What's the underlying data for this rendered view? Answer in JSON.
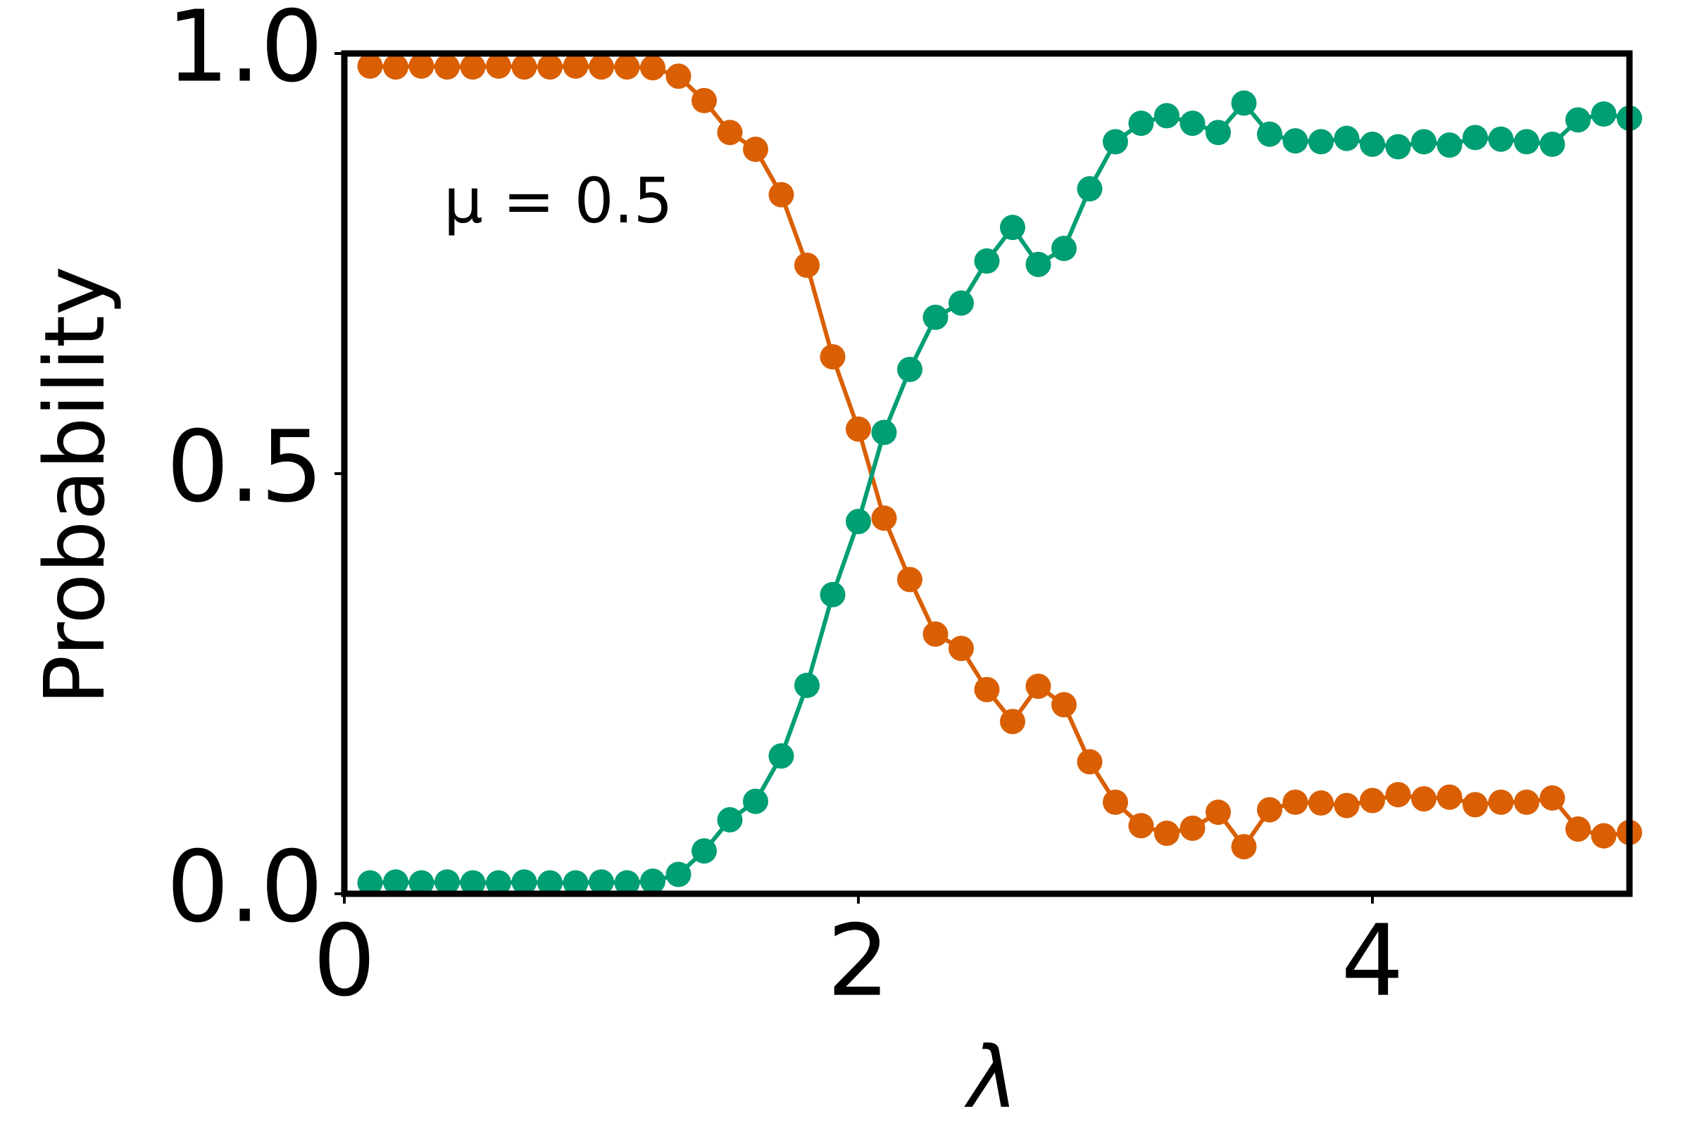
{
  "chart_data": {
    "type": "line",
    "annotation": "μ = 0.5",
    "x_label": "λ",
    "y_label": "Probability",
    "x": [
      0.1,
      0.2,
      0.3,
      0.4,
      0.5,
      0.6,
      0.7,
      0.8,
      0.9,
      1.0,
      1.1,
      1.2,
      1.3,
      1.4,
      1.5,
      1.6,
      1.7,
      1.8,
      1.9,
      2.0,
      2.1,
      2.2,
      2.3,
      2.4,
      2.5,
      2.6,
      2.7,
      2.8,
      2.9,
      3.0,
      3.1,
      3.2,
      3.3,
      3.4,
      3.5,
      3.6,
      3.7,
      3.8,
      3.9,
      4.0,
      4.1,
      4.2,
      4.3,
      4.4,
      4.5,
      4.6,
      4.7,
      4.8,
      4.9,
      5.0
    ],
    "series": [
      {
        "color": "#d95f02",
        "values": [
          0.985,
          0.984,
          0.985,
          0.984,
          0.984,
          0.985,
          0.984,
          0.984,
          0.985,
          0.984,
          0.984,
          0.983,
          0.973,
          0.944,
          0.906,
          0.886,
          0.832,
          0.748,
          0.639,
          0.553,
          0.447,
          0.374,
          0.309,
          0.292,
          0.243,
          0.205,
          0.247,
          0.225,
          0.157,
          0.109,
          0.081,
          0.072,
          0.078,
          0.097,
          0.056,
          0.1,
          0.109,
          0.108,
          0.105,
          0.111,
          0.118,
          0.113,
          0.115,
          0.106,
          0.109,
          0.109,
          0.114,
          0.077,
          0.069,
          0.073
        ]
      },
      {
        "color": "#009e73",
        "values": [
          0.013,
          0.014,
          0.013,
          0.014,
          0.013,
          0.013,
          0.014,
          0.013,
          0.013,
          0.014,
          0.013,
          0.015,
          0.023,
          0.051,
          0.088,
          0.11,
          0.164,
          0.248,
          0.356,
          0.443,
          0.549,
          0.624,
          0.686,
          0.703,
          0.753,
          0.793,
          0.749,
          0.768,
          0.839,
          0.895,
          0.917,
          0.926,
          0.917,
          0.906,
          0.941,
          0.904,
          0.896,
          0.895,
          0.899,
          0.892,
          0.889,
          0.895,
          0.891,
          0.9,
          0.898,
          0.895,
          0.892,
          0.921,
          0.928,
          0.923
        ]
      }
    ],
    "xlim": [
      0,
      5.0
    ],
    "ylim": [
      0,
      1.0
    ],
    "xticks": [
      0,
      2,
      4
    ],
    "yticks": [
      {
        "value": 0,
        "label": "0.0"
      },
      {
        "value": 0.5,
        "label": "0.5"
      },
      {
        "value": 1.0,
        "label": "1.0"
      }
    ]
  }
}
